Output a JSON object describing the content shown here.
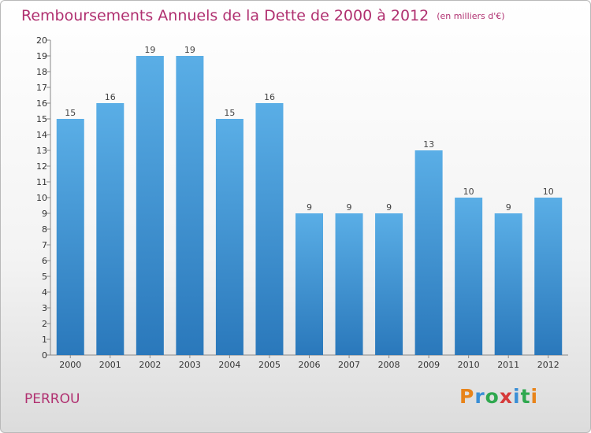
{
  "header": {
    "title": "Remboursements Annuels de la Dette de 2000 à 2012",
    "unit": "(en milliers d'€)"
  },
  "footer": {
    "commune": "PERROU",
    "logo_letters": [
      "P",
      "r",
      "o",
      "x",
      "i",
      "t",
      "i"
    ],
    "logo_colors": [
      "#e8841a",
      "#3a8fd6",
      "#2fa84f",
      "#d63b3b",
      "#3a8fd6",
      "#2fa84f",
      "#e8841a"
    ]
  },
  "chart_data": {
    "type": "bar",
    "title": "Remboursements Annuels de la Dette de 2000 à 2012",
    "xlabel": "",
    "ylabel": "",
    "categories": [
      "2000",
      "2001",
      "2002",
      "2003",
      "2004",
      "2005",
      "2006",
      "2007",
      "2008",
      "2009",
      "2010",
      "2011",
      "2012"
    ],
    "values": [
      15,
      16,
      19,
      19,
      15,
      16,
      9,
      9,
      9,
      13,
      10,
      9,
      10
    ],
    "ylim": [
      0,
      20
    ],
    "yticks": [
      0,
      1,
      2,
      3,
      4,
      5,
      6,
      7,
      8,
      9,
      10,
      11,
      12,
      13,
      14,
      15,
      16,
      17,
      18,
      19,
      20
    ],
    "grid": false,
    "legend": "none",
    "bar_color_top": "#5aaee6",
    "bar_color_bottom": "#2a78bb"
  }
}
